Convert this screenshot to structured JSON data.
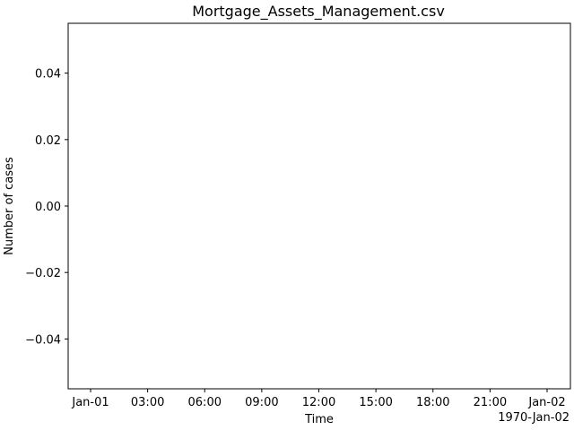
{
  "chart_data": {
    "type": "line",
    "title": "Mortgage_Assets_Management.csv",
    "xlabel": "Time",
    "ylabel": "Number of cases",
    "x_ticks": [
      "Jan-01",
      "03:00",
      "06:00",
      "09:00",
      "12:00",
      "15:00",
      "18:00",
      "21:00",
      "Jan-02"
    ],
    "x_offset_label": "1970-Jan-02",
    "y_ticks": [
      0.04,
      0.02,
      0.0,
      -0.02,
      -0.04
    ],
    "y_tick_labels": [
      "0.04",
      "0.02",
      "0.00",
      "−0.02",
      "−0.04"
    ],
    "ylim": [
      -0.055,
      0.055
    ],
    "grid": false,
    "series": []
  }
}
